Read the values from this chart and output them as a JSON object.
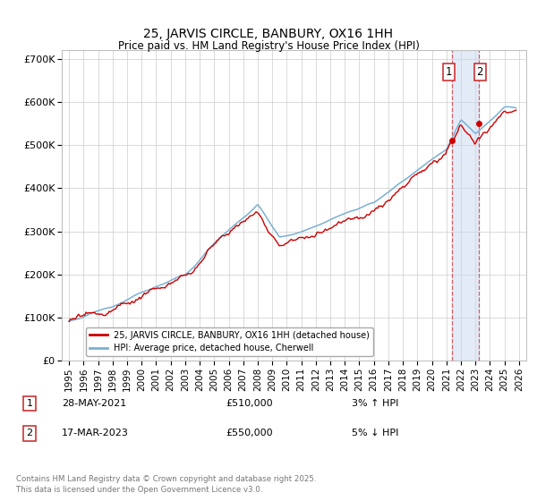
{
  "title": "25, JARVIS CIRCLE, BANBURY, OX16 1HH",
  "subtitle": "Price paid vs. HM Land Registry's House Price Index (HPI)",
  "ylabel_ticks": [
    "£0",
    "£100K",
    "£200K",
    "£300K",
    "£400K",
    "£500K",
    "£600K",
    "£700K"
  ],
  "ytick_values": [
    0,
    100000,
    200000,
    300000,
    400000,
    500000,
    600000,
    700000
  ],
  "ylim": [
    0,
    720000
  ],
  "xlim_start": 1994.5,
  "xlim_end": 2026.5,
  "legend_line1": "25, JARVIS CIRCLE, BANBURY, OX16 1HH (detached house)",
  "legend_line2": "HPI: Average price, detached house, Cherwell",
  "line1_color": "#cc0000",
  "line2_color": "#7ab0d4",
  "point1_label": "1",
  "point1_date": "28-MAY-2021",
  "point1_price": "£510,000",
  "point1_hpi": "3% ↑ HPI",
  "point1_x": 2021.38,
  "point1_y": 510000,
  "point2_label": "2",
  "point2_date": "17-MAR-2023",
  "point2_price": "£550,000",
  "point2_hpi": "5% ↓ HPI",
  "point2_x": 2023.21,
  "point2_y": 550000,
  "vline_color": "#cc0000",
  "vline_alpha": 0.6,
  "shade_color": "#c8d8f0",
  "shade_alpha": 0.5,
  "footer": "Contains HM Land Registry data © Crown copyright and database right 2025.\nThis data is licensed under the Open Government Licence v3.0.",
  "background_color": "#ffffff",
  "grid_color": "#cccccc",
  "label_box_color": "#cc3333"
}
